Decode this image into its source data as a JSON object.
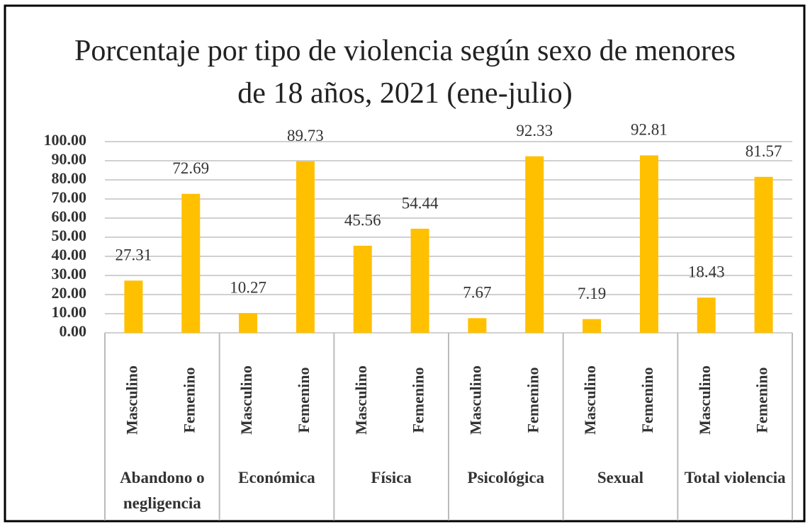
{
  "chart_data": {
    "type": "bar",
    "title": "Porcentaje por tipo de violencia según sexo de menores de 18 años, 2021 (ene-julio)",
    "groups": [
      {
        "name": "Abandono o negligencia",
        "categories": [
          "Masculino",
          "Femenino"
        ],
        "values": [
          27.31,
          72.69
        ]
      },
      {
        "name": "Económica",
        "categories": [
          "Masculino",
          "Femenino"
        ],
        "values": [
          10.27,
          89.73
        ]
      },
      {
        "name": "Física",
        "categories": [
          "Masculino",
          "Femenino"
        ],
        "values": [
          45.56,
          54.44
        ]
      },
      {
        "name": "Psicológica",
        "categories": [
          "Masculino",
          "Femenino"
        ],
        "values": [
          7.67,
          92.33
        ]
      },
      {
        "name": "Sexual",
        "categories": [
          "Masculino",
          "Femenino"
        ],
        "values": [
          7.19,
          92.81
        ]
      },
      {
        "name": "Total violencia",
        "categories": [
          "Masculino",
          "Femenino"
        ],
        "values": [
          18.43,
          81.57
        ]
      }
    ],
    "color": "#ffc000",
    "ylim": [
      0,
      100
    ],
    "yticks": [
      {
        "value": 0,
        "label": "0.00"
      },
      {
        "value": 10,
        "label": "10.00"
      },
      {
        "value": 20,
        "label": "20.00"
      },
      {
        "value": 30,
        "label": "30.00"
      },
      {
        "value": 40,
        "label": "40.00"
      },
      {
        "value": 50,
        "label": "50.00"
      },
      {
        "value": 60,
        "label": "60.00"
      },
      {
        "value": 70,
        "label": "70.00"
      },
      {
        "value": 80,
        "label": "80.00"
      },
      {
        "value": 90,
        "label": "90.00"
      },
      {
        "value": 100,
        "label": "100.00"
      }
    ],
    "grid": true
  }
}
